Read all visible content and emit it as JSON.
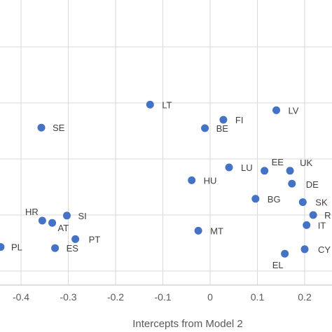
{
  "chart_data": {
    "type": "scatter",
    "xlabel": "Intercepts from Model 2",
    "ylabel": "",
    "xlim": [
      -0.44,
      0.22
    ],
    "ylim": [
      -0.15,
      0.65
    ],
    "x_ticks": [
      "-0.4",
      "-0.3",
      "-0.2",
      "-0.1",
      "0",
      "0.1",
      "0.2"
    ],
    "grid": "vertical and horizontal",
    "point_color": "#4472c4",
    "points": [
      {
        "label": "LT",
        "x": -0.127,
        "y": 0.447
      },
      {
        "label": "LV",
        "x": 0.14,
        "y": 0.437
      },
      {
        "label": "FI",
        "x": 0.028,
        "y": 0.42
      },
      {
        "label": "SE",
        "x": -0.357,
        "y": 0.406
      },
      {
        "label": "BE",
        "x": -0.011,
        "y": 0.405
      },
      {
        "label": "LU",
        "x": 0.04,
        "y": 0.335
      },
      {
        "label": "EE",
        "x": 0.115,
        "y": 0.329
      },
      {
        "label": "UK",
        "x": 0.169,
        "y": 0.329
      },
      {
        "label": "HU",
        "x": -0.039,
        "y": 0.312
      },
      {
        "label": "DE",
        "x": 0.173,
        "y": 0.306
      },
      {
        "label": "BG",
        "x": 0.096,
        "y": 0.279
      },
      {
        "label": "SK",
        "x": 0.196,
        "y": 0.273
      },
      {
        "label": "R",
        "x": 0.218,
        "y": 0.25
      },
      {
        "label": "SI",
        "x": -0.303,
        "y": 0.249
      },
      {
        "label": "HR",
        "x": -0.355,
        "y": 0.24
      },
      {
        "label": "AT",
        "x": -0.334,
        "y": 0.236
      },
      {
        "label": "IT",
        "x": 0.204,
        "y": 0.232
      },
      {
        "label": "MT",
        "x": -0.025,
        "y": 0.222
      },
      {
        "label": "PT",
        "x": -0.285,
        "y": 0.207
      },
      {
        "label": "PL",
        "x": -0.443,
        "y": 0.193
      },
      {
        "label": "ES",
        "x": -0.328,
        "y": 0.191
      },
      {
        "label": "CY",
        "x": 0.2,
        "y": 0.189
      },
      {
        "label": "EL",
        "x": 0.158,
        "y": 0.181
      }
    ]
  }
}
